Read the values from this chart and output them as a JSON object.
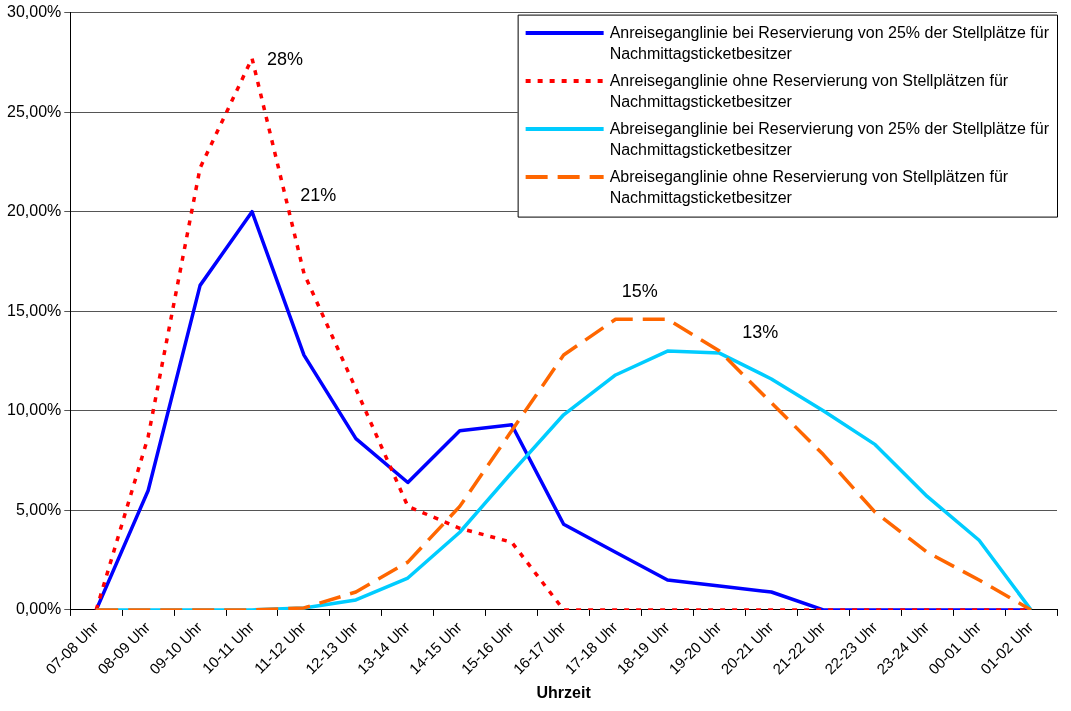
{
  "chart_data": {
    "type": "line",
    "xlabel": "Uhrzeit",
    "categories": [
      "07-08 Uhr",
      "08-09 Uhr",
      "09-10 Uhr",
      "10-11 Uhr",
      "11-12 Uhr",
      "12-13 Uhr",
      "13-14 Uhr",
      "14-15 Uhr",
      "15-16 Uhr",
      "16-17 Uhr",
      "17-18 Uhr",
      "18-19 Uhr",
      "19-20 Uhr",
      "20-21 Uhr",
      "21-22 Uhr",
      "22-23 Uhr",
      "23-24 Uhr",
      "00-01 Uhr",
      "01-02 Uhr"
    ],
    "series": [
      {
        "name": "Anreiseganglinie bei Reservierung von 25% der Stellplätze für Nachmittagsticketbesitzer",
        "color": "#0000ff",
        "line_style": "solid",
        "values": [
          0,
          6.0,
          16.3,
          20.0,
          12.8,
          8.6,
          6.4,
          9.0,
          9.3,
          4.3,
          2.9,
          1.5,
          1.2,
          0.9,
          0,
          0,
          0,
          0,
          0
        ]
      },
      {
        "name": "Anreiseganglinie ohne Reservierung von Stellplätzen für Nachmittagsticketbesitzer",
        "color": "#ff0000",
        "line_style": "dotted",
        "values": [
          0,
          8.7,
          22.2,
          27.7,
          16.9,
          11.1,
          5.2,
          4.1,
          3.4,
          0,
          0,
          0,
          0,
          0,
          0,
          0,
          0,
          0,
          0
        ]
      },
      {
        "name": "Abreiseganglinie bei Reservierung von 25% der Stellplätze für Nachmittagsticketbesitzer",
        "color": "#00ccff",
        "line_style": "solid",
        "values": [
          0,
          0,
          0,
          0,
          0.1,
          0.5,
          1.6,
          3.9,
          6.9,
          9.8,
          11.8,
          13.0,
          12.9,
          11.6,
          10.0,
          8.3,
          5.7,
          3.5,
          0
        ]
      },
      {
        "name": "Abreiseganglinie ohne Reservierung von Stellplätzen für Nachmittagsticketbesitzer",
        "color": "#ff6600",
        "line_style": "dashed",
        "values": [
          0,
          0,
          0,
          0,
          0.1,
          0.9,
          2.4,
          5.2,
          9.0,
          12.8,
          14.6,
          14.6,
          13.0,
          10.4,
          7.8,
          4.9,
          2.9,
          1.5,
          0
        ]
      }
    ],
    "ylim": [
      0,
      30
    ],
    "yticks": [
      {
        "value": 0,
        "label": "0,00%"
      },
      {
        "value": 5,
        "label": "5,00%"
      },
      {
        "value": 10,
        "label": "10,00%"
      },
      {
        "value": 15,
        "label": "15,00%"
      },
      {
        "value": 20,
        "label": "20,00%"
      },
      {
        "value": 25,
        "label": "25,00%"
      },
      {
        "value": 30,
        "label": "30,00%"
      }
    ],
    "grid": "y",
    "legend": "top right",
    "marker": "none",
    "annotations": [
      {
        "text": "28%",
        "x": "10-11 Uhr",
        "y": 27.6
      },
      "21%",
      "15%",
      "13%"
    ]
  }
}
